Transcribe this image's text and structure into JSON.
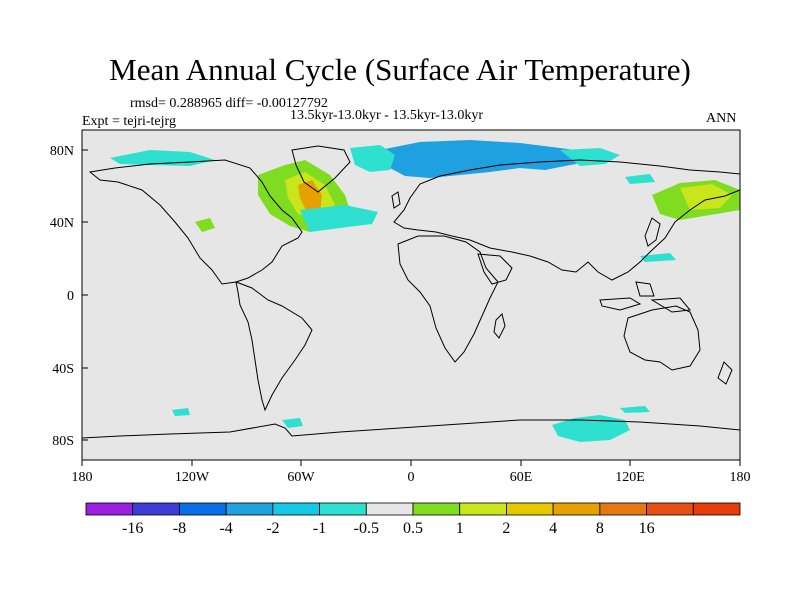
{
  "title": "Mean Annual Cycle (Surface Air Temperature)",
  "stats": "rmsd= 0.288965 diff= -0.00127792",
  "subtitle": "13.5kyr-13.0kyr - 13.5kyr-13.0kyr",
  "experiment": "Expt = tejri-tejrg",
  "season": "ANN",
  "colors": {
    "ocean": "#e6e6e6",
    "blue_anom": "#1fa0e0",
    "cyan_anom": "#2ee0d0",
    "green_anom": "#80dc20",
    "orange_anom": "#e8a020"
  },
  "map": {
    "lat_labels": [
      "80N",
      "40N",
      "0",
      "40S",
      "80S"
    ],
    "lon_labels": [
      "180",
      "120W",
      "60W",
      "0",
      "60E",
      "120E",
      "180"
    ]
  },
  "colorbar": {
    "colors": [
      "#9a1fe0",
      "#3d3dd6",
      "#0a6ee6",
      "#1fa0e0",
      "#14c8e6",
      "#2ee0d0",
      "#e6e6e6",
      "#80dc20",
      "#c8e619",
      "#e6c800",
      "#e6a000",
      "#e67814",
      "#e65014",
      "#e63c0a"
    ],
    "labels": [
      "-16",
      "-8",
      "-4",
      "-2",
      "-1",
      "-0.5",
      "0.5",
      "1",
      "2",
      "4",
      "8",
      "16"
    ]
  }
}
